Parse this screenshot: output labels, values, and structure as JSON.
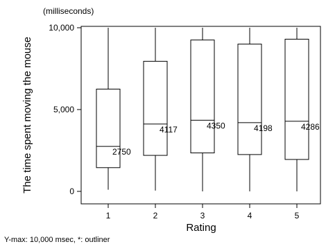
{
  "chart_data": {
    "type": "boxplot",
    "title": "",
    "unit_label": "(milliseconds)",
    "ylabel": "The time spent moving the mouse",
    "xlabel": "Rating",
    "ylim": [
      0,
      10000
    ],
    "ytick_values": [
      0,
      5000,
      10000
    ],
    "ytick_labels": [
      "0",
      "5,000",
      "10,000"
    ],
    "categories": [
      "1",
      "2",
      "3",
      "4",
      "5"
    ],
    "boxes": [
      {
        "category": "1",
        "whisker_low": 100,
        "q1": 1450,
        "median": 2750,
        "q3": 6250,
        "whisker_high": 10000,
        "median_label": "2750"
      },
      {
        "category": "2",
        "whisker_low": 50,
        "q1": 2200,
        "median": 4117,
        "q3": 7950,
        "whisker_high": 10000,
        "median_label": "4117"
      },
      {
        "category": "3",
        "whisker_low": 0,
        "q1": 2350,
        "median": 4350,
        "q3": 9250,
        "whisker_high": 10000,
        "median_label": "4350"
      },
      {
        "category": "4",
        "whisker_low": 0,
        "q1": 2250,
        "median": 4198,
        "q3": 9000,
        "whisker_high": 10000,
        "median_label": "4198"
      },
      {
        "category": "5",
        "whisker_low": 0,
        "q1": 1950,
        "median": 4286,
        "q3": 9300,
        "whisker_high": 10000,
        "median_label": "4286"
      }
    ],
    "grid": false,
    "legend": "none"
  },
  "footnote": "Y-max: 10,000 msec, *: outliner"
}
